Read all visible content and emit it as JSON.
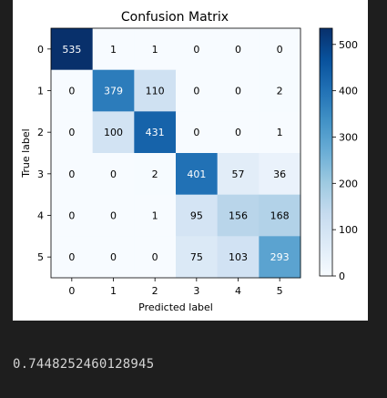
{
  "chart_data": {
    "type": "heatmap",
    "title": "Confusion Matrix",
    "xlabel": "Predicted label",
    "ylabel": "True label",
    "x_categories": [
      "0",
      "1",
      "2",
      "3",
      "4",
      "5"
    ],
    "y_categories": [
      "0",
      "1",
      "2",
      "3",
      "4",
      "5"
    ],
    "matrix": [
      [
        535,
        1,
        1,
        0,
        0,
        0
      ],
      [
        0,
        379,
        110,
        0,
        0,
        2
      ],
      [
        0,
        100,
        431,
        0,
        0,
        1
      ],
      [
        0,
        0,
        2,
        401,
        57,
        36
      ],
      [
        0,
        0,
        1,
        95,
        156,
        168
      ],
      [
        0,
        0,
        0,
        75,
        103,
        293
      ]
    ],
    "colormap": "Blues",
    "vmin": 0,
    "vmax": 535,
    "colorbar_ticks": [
      0,
      100,
      200,
      300,
      400,
      500
    ]
  },
  "output": {
    "text": "0.7448252460128945"
  },
  "colors": {
    "background": "#1e1e1e",
    "figure_background": "#ffffff",
    "output_text": "#d4d4d4"
  }
}
